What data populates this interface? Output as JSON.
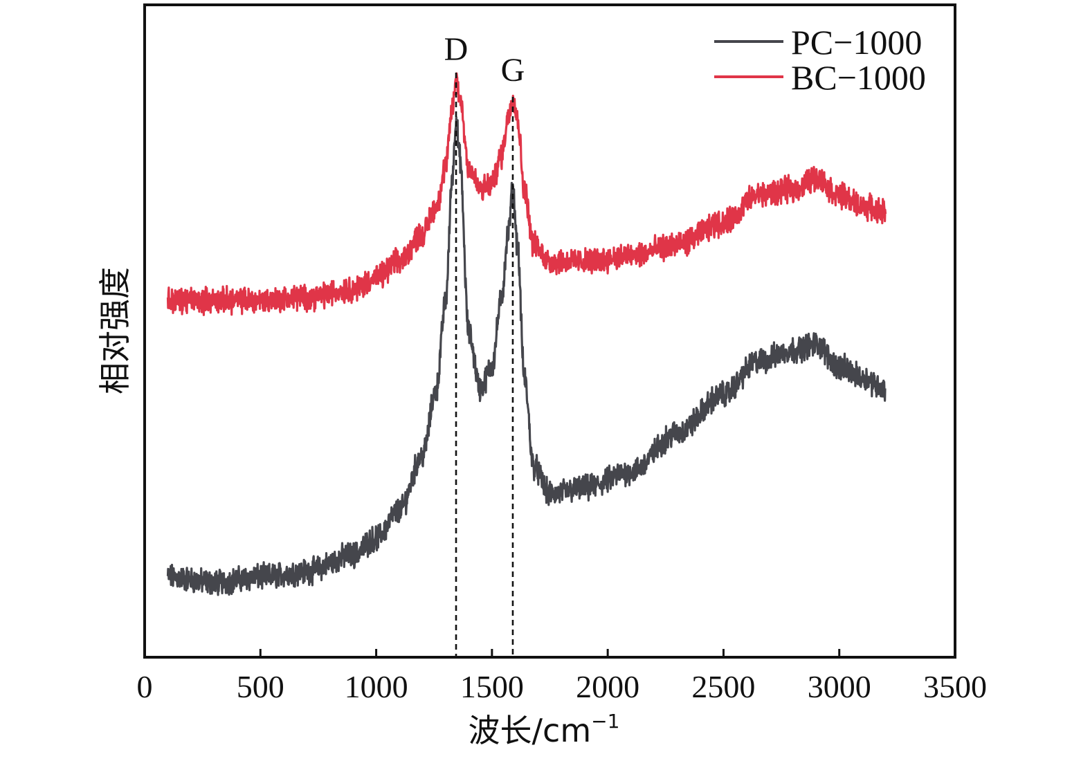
{
  "chart_data": {
    "type": "line",
    "xlabel": "波长/cm",
    "xlabel_superscript": "−1",
    "ylabel": "相对强度",
    "xlim": [
      0,
      3500
    ],
    "x_ticks": [
      "0",
      "500",
      "1000",
      "1500",
      "2000",
      "2500",
      "3000",
      "3500"
    ],
    "y_ticks_shown": false,
    "grid": false,
    "legend_position": "top-right",
    "peak_markers": [
      {
        "label": "D",
        "x": 1345
      },
      {
        "label": "G",
        "x": 1590
      }
    ],
    "series": [
      {
        "name": "PC−1000",
        "color": "#45464c",
        "points": [
          [
            100,
            0.12
          ],
          [
            300,
            0.11
          ],
          [
            500,
            0.12
          ],
          [
            700,
            0.13
          ],
          [
            900,
            0.16
          ],
          [
            1000,
            0.19
          ],
          [
            1100,
            0.24
          ],
          [
            1200,
            0.34
          ],
          [
            1260,
            0.46
          ],
          [
            1300,
            0.62
          ],
          [
            1330,
            0.85
          ],
          [
            1345,
            0.95
          ],
          [
            1360,
            0.88
          ],
          [
            1400,
            0.56
          ],
          [
            1450,
            0.46
          ],
          [
            1500,
            0.5
          ],
          [
            1540,
            0.62
          ],
          [
            1570,
            0.74
          ],
          [
            1590,
            0.82
          ],
          [
            1610,
            0.72
          ],
          [
            1640,
            0.48
          ],
          [
            1680,
            0.32
          ],
          [
            1750,
            0.27
          ],
          [
            1900,
            0.28
          ],
          [
            2100,
            0.31
          ],
          [
            2300,
            0.38
          ],
          [
            2500,
            0.45
          ],
          [
            2650,
            0.51
          ],
          [
            2800,
            0.53
          ],
          [
            2900,
            0.54
          ],
          [
            3000,
            0.5
          ],
          [
            3100,
            0.48
          ],
          [
            3200,
            0.46
          ]
        ]
      },
      {
        "name": "BC−1000",
        "color": "#e03548",
        "points": [
          [
            100,
            0.62
          ],
          [
            300,
            0.62
          ],
          [
            500,
            0.62
          ],
          [
            700,
            0.625
          ],
          [
            900,
            0.64
          ],
          [
            1000,
            0.66
          ],
          [
            1100,
            0.69
          ],
          [
            1200,
            0.74
          ],
          [
            1260,
            0.79
          ],
          [
            1300,
            0.86
          ],
          [
            1330,
            0.97
          ],
          [
            1345,
            1.02
          ],
          [
            1360,
            0.99
          ],
          [
            1400,
            0.86
          ],
          [
            1450,
            0.82
          ],
          [
            1500,
            0.83
          ],
          [
            1540,
            0.88
          ],
          [
            1570,
            0.95
          ],
          [
            1590,
            0.99
          ],
          [
            1610,
            0.95
          ],
          [
            1640,
            0.82
          ],
          [
            1680,
            0.72
          ],
          [
            1750,
            0.69
          ],
          [
            1900,
            0.69
          ],
          [
            2100,
            0.7
          ],
          [
            2300,
            0.72
          ],
          [
            2500,
            0.76
          ],
          [
            2650,
            0.81
          ],
          [
            2800,
            0.82
          ],
          [
            2900,
            0.84
          ],
          [
            3000,
            0.81
          ],
          [
            3100,
            0.79
          ],
          [
            3200,
            0.78
          ]
        ]
      }
    ]
  }
}
